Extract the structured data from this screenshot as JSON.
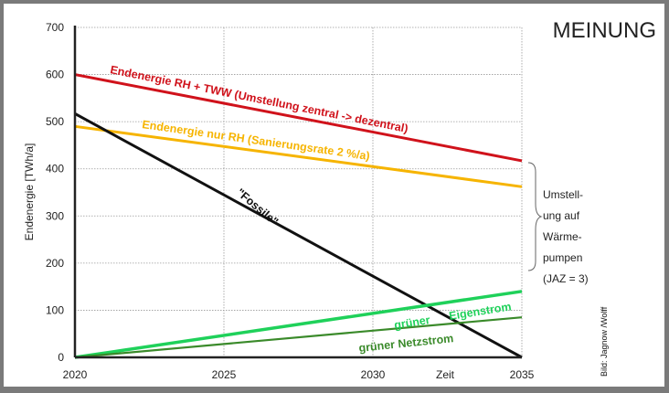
{
  "header": {
    "section_label": "MEINUNG"
  },
  "credit": "Bild: Jagnow /Wolff",
  "colors": {
    "red": "#d0121b",
    "yellow": "#f6b400",
    "black": "#111111",
    "green": "#1fd15a",
    "dark_green": "#3a8a2a",
    "grid": "#999999"
  },
  "chart_data": {
    "type": "line",
    "title": "",
    "xlabel": "Zeit",
    "ylabel": "Endenergie [TWh/a]",
    "xlim": [
      2020,
      2035
    ],
    "ylim": [
      0,
      700
    ],
    "x_ticks": [
      "2020",
      "2025",
      "2030",
      "2035"
    ],
    "y_ticks": [
      "0",
      "100",
      "200",
      "300",
      "400",
      "500",
      "600",
      "700"
    ],
    "grid": true,
    "series": [
      {
        "name": "Endenergie RH + TWW (Umstellung zentral -> dezentral)",
        "color": "#d0121b",
        "x": [
          2020,
          2035
        ],
        "y": [
          600,
          417
        ]
      },
      {
        "name": "Endenergie nur RH (Sanierungsrate 2 %/a)",
        "color": "#f6b400",
        "x": [
          2020,
          2035
        ],
        "y": [
          490,
          362
        ]
      },
      {
        "name": "\"Fossile\"",
        "color": "#111111",
        "x": [
          2020,
          2035
        ],
        "y": [
          517,
          0
        ]
      },
      {
        "name": "grüner Eigenstrom",
        "color": "#1fd15a",
        "x": [
          2020,
          2035
        ],
        "y": [
          0,
          140
        ]
      },
      {
        "name": "grüner Netzstrom",
        "color": "#3a8a2a",
        "x": [
          2020,
          2035
        ],
        "y": [
          0,
          85
        ]
      }
    ],
    "annotations": {
      "eigen_part1": "grüner",
      "eigen_part2": "Eigenstrom",
      "brace_note": [
        "Umstell-",
        "ung auf",
        "Wärme-",
        "pumpen",
        "(JAZ = 3)"
      ]
    }
  }
}
